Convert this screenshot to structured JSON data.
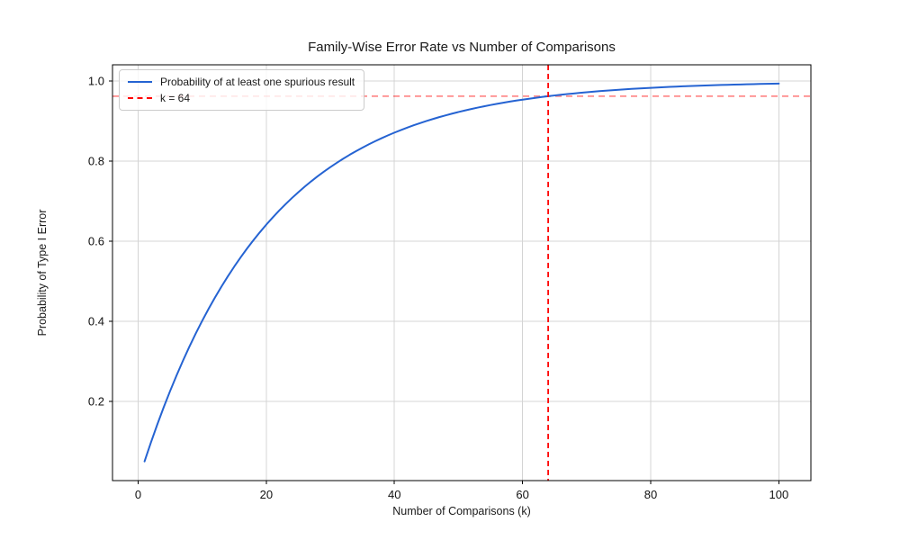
{
  "figure": {
    "background": "#ffffff"
  },
  "chart_data": {
    "type": "line",
    "title": "Family-Wise Error Rate vs Number of Comparisons",
    "xlabel": "Number of Comparisons (k)",
    "ylabel": "Probability of Type I Error",
    "xlim": [
      -4,
      105
    ],
    "ylim": [
      0.002,
      1.041
    ],
    "x_ticks": [
      0,
      20,
      40,
      60,
      80,
      100
    ],
    "y_ticks": [
      0.2,
      0.4,
      0.6,
      0.8,
      1.0
    ],
    "grid": true,
    "grid_color": "#d4d4d4",
    "spine_color": "#000000",
    "legend_position": "upper-left",
    "series": [
      {
        "name": "Probability of at least one spurious result",
        "color": "#2563d2",
        "style": "solid",
        "x": [
          1,
          2,
          3,
          4,
          5,
          6,
          7,
          8,
          9,
          10,
          11,
          12,
          13,
          14,
          15,
          16,
          17,
          18,
          19,
          20,
          21,
          22,
          23,
          24,
          25,
          26,
          27,
          28,
          29,
          30,
          31,
          32,
          33,
          34,
          35,
          36,
          37,
          38,
          39,
          40,
          41,
          42,
          43,
          44,
          45,
          46,
          47,
          48,
          49,
          50,
          51,
          52,
          53,
          54,
          55,
          56,
          57,
          58,
          59,
          60,
          61,
          62,
          63,
          64,
          65,
          66,
          67,
          68,
          69,
          70,
          71,
          72,
          73,
          74,
          75,
          76,
          77,
          78,
          79,
          80,
          81,
          82,
          83,
          84,
          85,
          86,
          87,
          88,
          89,
          90,
          91,
          92,
          93,
          94,
          95,
          96,
          97,
          98,
          99,
          100
        ],
        "y": [
          0.05,
          0.0975,
          0.1426,
          0.1855,
          0.2262,
          0.2649,
          0.3017,
          0.3366,
          0.3698,
          0.4013,
          0.4312,
          0.4596,
          0.4867,
          0.5123,
          0.5367,
          0.5599,
          0.5819,
          0.6028,
          0.6226,
          0.6415,
          0.6594,
          0.6765,
          0.6926,
          0.708,
          0.7226,
          0.7365,
          0.7497,
          0.7622,
          0.7741,
          0.7854,
          0.7961,
          0.8063,
          0.816,
          0.8252,
          0.8339,
          0.8422,
          0.8501,
          0.8576,
          0.8647,
          0.8715,
          0.8779,
          0.884,
          0.8898,
          0.8953,
          0.9006,
          0.9055,
          0.9103,
          0.9147,
          0.919,
          0.9231,
          0.9269,
          0.9306,
          0.934,
          0.9373,
          0.9405,
          0.9434,
          0.9463,
          0.949,
          0.9515,
          0.9539,
          0.9562,
          0.9584,
          0.9605,
          0.9625,
          0.9644,
          0.9661,
          0.9678,
          0.9694,
          0.971,
          0.9724,
          0.9738,
          0.9751,
          0.9764,
          0.9775,
          0.9787,
          0.9797,
          0.9807,
          0.9817,
          0.9826,
          0.9835,
          0.9843,
          0.9851,
          0.9858,
          0.9865,
          0.9872,
          0.9879,
          0.9885,
          0.989,
          0.9896,
          0.9901,
          0.9906,
          0.9911,
          0.9915,
          0.9919,
          0.9923,
          0.9927,
          0.9931,
          0.9934,
          0.9938,
          0.9941
        ]
      }
    ],
    "annotations": [
      {
        "type": "vline",
        "label": "k = 64",
        "x": 64,
        "color": "#ff0000",
        "opacity": 1,
        "style": "dashed"
      },
      {
        "type": "hline",
        "y": 0.9625,
        "color": "#ff0000",
        "opacity": 0.45,
        "style": "dashed"
      }
    ]
  }
}
